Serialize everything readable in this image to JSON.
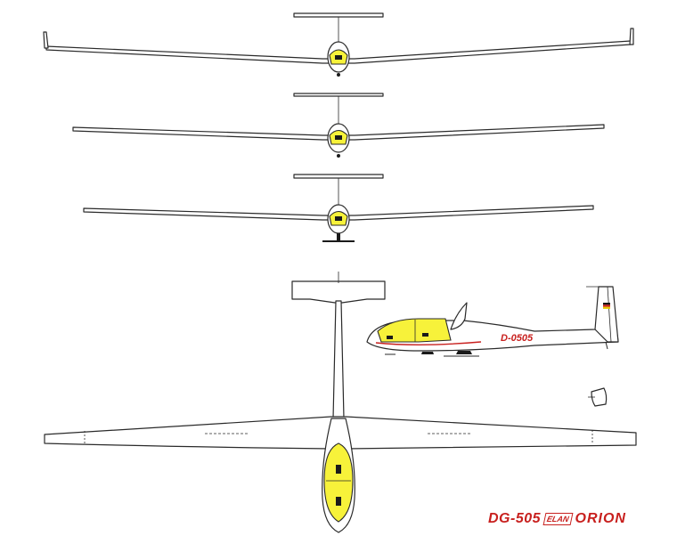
{
  "colors": {
    "canopy": "#f7f23a",
    "brand_red": "#c8201e",
    "outline": "#2a2a2a"
  },
  "aircraft": {
    "registration": "D-0505"
  },
  "brand": {
    "model": "DG-505",
    "manufacturer_logo": "ELAN",
    "name": "ORION"
  },
  "views": [
    "front-view-winglets",
    "front-view-long-span",
    "front-view-with-gear",
    "top-view",
    "side-view",
    "rudder-detail"
  ]
}
